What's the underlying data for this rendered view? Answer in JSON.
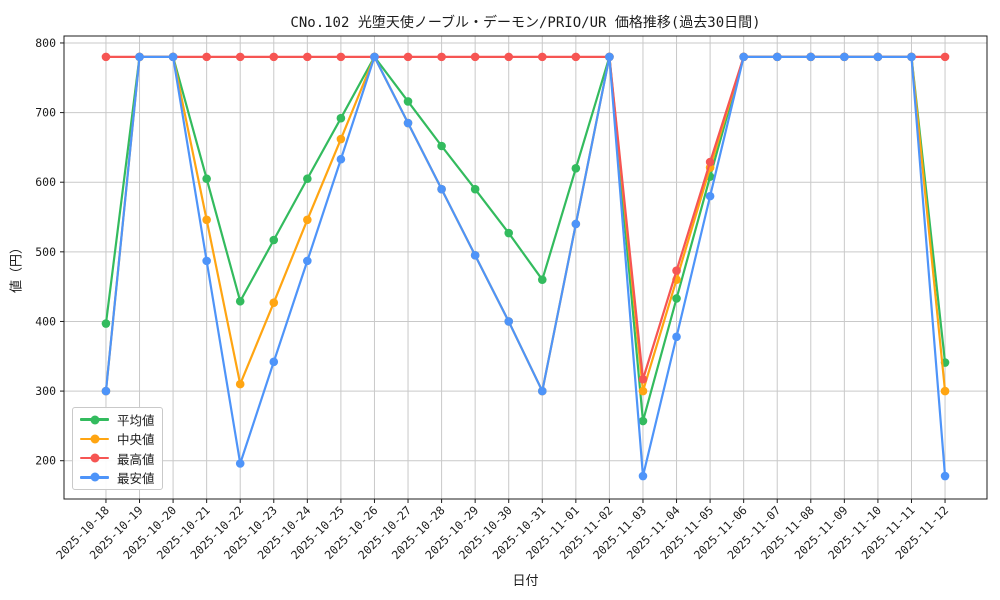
{
  "chart_data": {
    "type": "line",
    "title": "CNo.102 光堕天使ノーブル・デーモン/PRIO/UR 価格推移(過去30日間)",
    "xlabel": "日付",
    "ylabel": "値（円）",
    "x": [
      "2025-10-18",
      "2025-10-19",
      "2025-10-20",
      "2025-10-21",
      "2025-10-22",
      "2025-10-23",
      "2025-10-24",
      "2025-10-25",
      "2025-10-26",
      "2025-10-27",
      "2025-10-28",
      "2025-10-29",
      "2025-10-30",
      "2025-10-31",
      "2025-11-01",
      "2025-11-02",
      "2025-11-03",
      "2025-11-04",
      "2025-11-05",
      "2025-11-06",
      "2025-11-07",
      "2025-11-08",
      "2025-11-09",
      "2025-11-10",
      "2025-11-11",
      "2025-11-12"
    ],
    "series": [
      {
        "id": "average",
        "name": "平均値",
        "color": "#33bb5e",
        "values": [
          397,
          780,
          780,
          605,
          429,
          517,
          605,
          692,
          780,
          716,
          652,
          590,
          527,
          460,
          620,
          780,
          257,
          433,
          608,
          780,
          780,
          780,
          780,
          780,
          780,
          341
        ]
      },
      {
        "id": "median",
        "name": "中央値",
        "color": "#ffa512",
        "values": [
          300,
          780,
          780,
          546,
          310,
          427,
          546,
          662,
          780,
          685,
          590,
          495,
          400,
          300,
          540,
          780,
          300,
          460,
          621,
          780,
          780,
          780,
          780,
          780,
          780,
          300
        ]
      },
      {
        "id": "highest",
        "name": "最高値",
        "color": "#f65553",
        "values": [
          780,
          780,
          780,
          780,
          780,
          780,
          780,
          780,
          780,
          780,
          780,
          780,
          780,
          780,
          780,
          780,
          317,
          473,
          629,
          780,
          780,
          780,
          780,
          780,
          780,
          780
        ]
      },
      {
        "id": "lowest",
        "name": "最安値",
        "color": "#4e94f9",
        "values": [
          300,
          780,
          780,
          487,
          196,
          342,
          487,
          633,
          780,
          685,
          590,
          495,
          400,
          300,
          540,
          780,
          178,
          378,
          580,
          780,
          780,
          780,
          780,
          780,
          780,
          178
        ]
      }
    ],
    "yticks": [
      200,
      300,
      400,
      500,
      600,
      700,
      800
    ],
    "ylim": [
      145,
      810
    ],
    "grid": true,
    "legend_position": "lower left",
    "grid_color": "#c9c9c9",
    "axis_color": "#1c1c1c",
    "text_color": "#1c1c1c",
    "background": "#ffffff"
  }
}
